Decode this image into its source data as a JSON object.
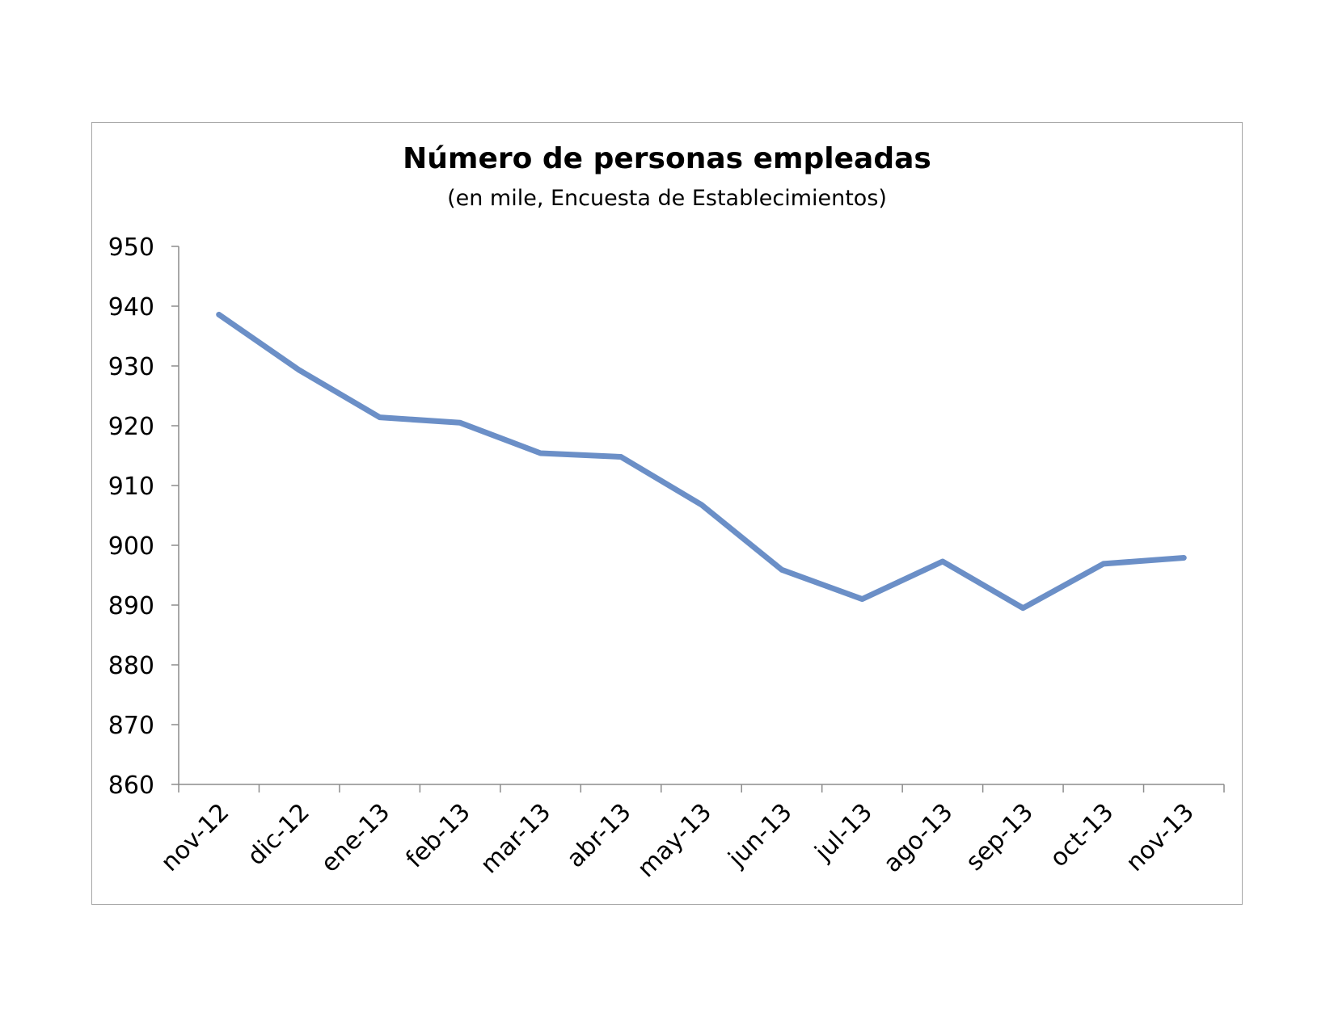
{
  "chart_data": {
    "type": "line",
    "title": "Número de personas empleadas",
    "subtitle": "(en mile, Encuesta de Establecimientos)",
    "xlabel": "",
    "ylabel": "",
    "categories": [
      "nov-12",
      "dic-12",
      "ene-13",
      "feb-13",
      "mar-13",
      "abr-13",
      "may-13",
      "jun-13",
      "jul-13",
      "ago-13",
      "sep-13",
      "oct-13",
      "nov-13"
    ],
    "series": [
      {
        "values": [
          938.6,
          929.3,
          921.4,
          920.5,
          915.4,
          914.8,
          906.8,
          895.9,
          891.0,
          897.3,
          889.5,
          896.9,
          897.9
        ],
        "color": "#6b8fc7"
      }
    ],
    "ylim": [
      860,
      950
    ],
    "yticks": [
      860,
      870,
      880,
      890,
      900,
      910,
      920,
      930,
      940,
      950
    ],
    "grid": false,
    "legend": "none"
  }
}
